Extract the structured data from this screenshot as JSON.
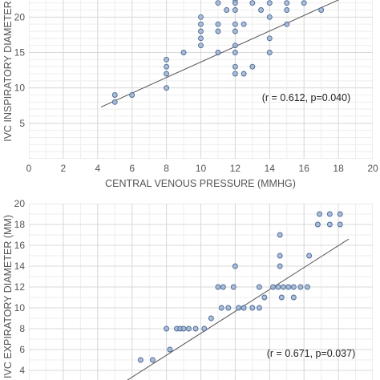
{
  "colors": {
    "point_fill": "#9fb3cf",
    "point_stroke": "#4a6a9a",
    "trend_line": "#555555",
    "grid_major": "#d9d9d9",
    "grid_minor": "#eeeeee"
  },
  "chart_data": [
    {
      "type": "scatter",
      "title": "",
      "xlabel": "CENTRAL VENOUS PRESSURE (MMHG)",
      "ylabel": "IVC INSPIRATORY DIAMETER",
      "xlim": [
        0,
        20
      ],
      "ylim": [
        0,
        24
      ],
      "xticks": [
        "0",
        "2",
        "4",
        "6",
        "8",
        "10",
        "12",
        "14",
        "16",
        "18",
        "20"
      ],
      "yticks": [
        "5",
        "10",
        "15",
        "20"
      ],
      "grid": true,
      "annotation": "(r = 0.612, p=0.040)",
      "trendline": {
        "x": [
          4.2,
          18.8
        ],
        "y": [
          7.3,
          23.3
        ]
      },
      "points": [
        {
          "x": 5,
          "y": 9
        },
        {
          "x": 5,
          "y": 8
        },
        {
          "x": 6,
          "y": 9
        },
        {
          "x": 8,
          "y": 14
        },
        {
          "x": 8,
          "y": 13
        },
        {
          "x": 8,
          "y": 12
        },
        {
          "x": 8,
          "y": 10
        },
        {
          "x": 9,
          "y": 15
        },
        {
          "x": 10,
          "y": 20
        },
        {
          "x": 10,
          "y": 19
        },
        {
          "x": 10,
          "y": 18
        },
        {
          "x": 10,
          "y": 17
        },
        {
          "x": 10,
          "y": 16
        },
        {
          "x": 11,
          "y": 22
        },
        {
          "x": 11,
          "y": 19
        },
        {
          "x": 11,
          "y": 18
        },
        {
          "x": 11,
          "y": 15
        },
        {
          "x": 11.5,
          "y": 21
        },
        {
          "x": 12,
          "y": 23
        },
        {
          "x": 12,
          "y": 22.5
        },
        {
          "x": 12,
          "y": 22
        },
        {
          "x": 12,
          "y": 21
        },
        {
          "x": 12,
          "y": 19
        },
        {
          "x": 12,
          "y": 18
        },
        {
          "x": 12,
          "y": 16
        },
        {
          "x": 12,
          "y": 15
        },
        {
          "x": 12,
          "y": 13
        },
        {
          "x": 12,
          "y": 12
        },
        {
          "x": 12.5,
          "y": 19
        },
        {
          "x": 12.5,
          "y": 12
        },
        {
          "x": 13,
          "y": 22
        },
        {
          "x": 13,
          "y": 13
        },
        {
          "x": 13.5,
          "y": 21
        },
        {
          "x": 14,
          "y": 22
        },
        {
          "x": 14,
          "y": 20
        },
        {
          "x": 14,
          "y": 17
        },
        {
          "x": 14,
          "y": 15
        },
        {
          "x": 15,
          "y": 22
        },
        {
          "x": 15,
          "y": 21
        },
        {
          "x": 15,
          "y": 19
        },
        {
          "x": 16,
          "y": 22
        },
        {
          "x": 17,
          "y": 21
        },
        {
          "x": 18,
          "y": 23
        },
        {
          "x": 19,
          "y": 23
        }
      ]
    },
    {
      "type": "scatter",
      "title": "",
      "xlabel": "",
      "ylabel": "IVC EXPIRATORY DIAMETER (MM)",
      "xlim": [
        0,
        20
      ],
      "ylim": [
        2,
        20
      ],
      "xticks": [],
      "yticks": [
        "4",
        "6",
        "8",
        "10",
        "12",
        "14",
        "16",
        "18",
        "20"
      ],
      "grid": true,
      "annotation": "(r = 0.671, p=0.037)",
      "trendline": {
        "x": [
          5,
          18.6
        ],
        "y": [
          2.3,
          16.6
        ]
      },
      "points": [
        {
          "x": 6.5,
          "y": 5
        },
        {
          "x": 7.2,
          "y": 5
        },
        {
          "x": 8.2,
          "y": 6
        },
        {
          "x": 8,
          "y": 8
        },
        {
          "x": 8.6,
          "y": 8
        },
        {
          "x": 8.8,
          "y": 8
        },
        {
          "x": 9,
          "y": 8
        },
        {
          "x": 9.3,
          "y": 8
        },
        {
          "x": 9.7,
          "y": 8
        },
        {
          "x": 10.2,
          "y": 8
        },
        {
          "x": 10.6,
          "y": 9
        },
        {
          "x": 11,
          "y": 12
        },
        {
          "x": 11.3,
          "y": 12
        },
        {
          "x": 11.2,
          "y": 10
        },
        {
          "x": 11.6,
          "y": 10
        },
        {
          "x": 11.9,
          "y": 12
        },
        {
          "x": 12,
          "y": 14
        },
        {
          "x": 12.2,
          "y": 10
        },
        {
          "x": 12.5,
          "y": 10
        },
        {
          "x": 13,
          "y": 10
        },
        {
          "x": 13.4,
          "y": 12
        },
        {
          "x": 13.7,
          "y": 11
        },
        {
          "x": 13.4,
          "y": 10
        },
        {
          "x": 14.2,
          "y": 12
        },
        {
          "x": 14.5,
          "y": 12
        },
        {
          "x": 14.6,
          "y": 14
        },
        {
          "x": 14.6,
          "y": 15
        },
        {
          "x": 14.6,
          "y": 17
        },
        {
          "x": 14.7,
          "y": 11
        },
        {
          "x": 14.8,
          "y": 12
        },
        {
          "x": 15.1,
          "y": 12
        },
        {
          "x": 15.4,
          "y": 12
        },
        {
          "x": 15.8,
          "y": 12
        },
        {
          "x": 16.2,
          "y": 12
        },
        {
          "x": 15.4,
          "y": 11
        },
        {
          "x": 16.3,
          "y": 15
        },
        {
          "x": 16.8,
          "y": 18
        },
        {
          "x": 16.9,
          "y": 19
        },
        {
          "x": 17.5,
          "y": 19
        },
        {
          "x": 17.5,
          "y": 18
        },
        {
          "x": 18.1,
          "y": 19
        },
        {
          "x": 18.1,
          "y": 18
        }
      ]
    }
  ]
}
